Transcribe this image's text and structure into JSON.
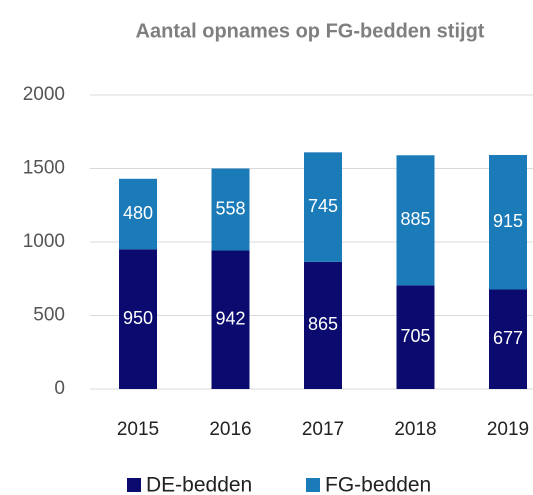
{
  "chart_data": {
    "type": "stacked_bar",
    "title": "Aantal opnames op FG-bedden stijgt",
    "categories": [
      "2015",
      "2016",
      "2017",
      "2018",
      "2019"
    ],
    "series": [
      {
        "name": "DE-bedden",
        "color": "#0b0b6f",
        "values": [
          950,
          942,
          865,
          705,
          677
        ]
      },
      {
        "name": "FG-bedden",
        "color": "#1b7bb8",
        "values": [
          480,
          558,
          745,
          885,
          915
        ]
      }
    ],
    "ylim": [
      0,
      2000
    ],
    "yticks": [
      0,
      500,
      1000,
      1500,
      2000
    ],
    "grid": true,
    "legend": "bottom"
  }
}
